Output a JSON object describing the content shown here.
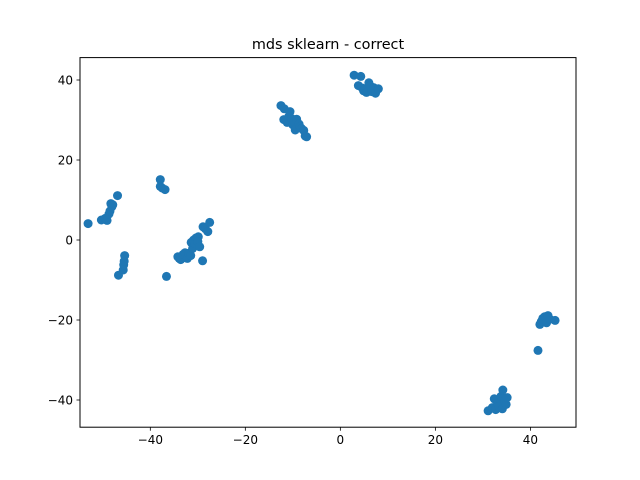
{
  "chart_data": {
    "type": "scatter",
    "title": "mds sklearn - correct",
    "xlabel": "",
    "ylabel": "",
    "xlim": [
      -54.8,
      49.6
    ],
    "ylim": [
      -46.8,
      45.6
    ],
    "xticks": [
      -40,
      -20,
      0,
      20,
      40
    ],
    "yticks": [
      -40,
      -20,
      0,
      20,
      40
    ],
    "grid": false,
    "legend": "none",
    "colors": {
      "points": "#1f77b4",
      "axes": "#000000",
      "background": "#ffffff"
    },
    "series": [
      {
        "points": [
          [
            -53.1,
            4.1
          ],
          [
            -50.3,
            5.0
          ],
          [
            -49.5,
            5.4
          ],
          [
            -49.1,
            4.9
          ],
          [
            -48.7,
            6.5
          ],
          [
            -48.5,
            7.2
          ],
          [
            -48.1,
            8.3
          ],
          [
            -48.3,
            9.1
          ],
          [
            -47.9,
            8.8
          ],
          [
            -46.9,
            11.1
          ],
          [
            -46.7,
            -8.8
          ],
          [
            -45.7,
            -7.5
          ],
          [
            -45.6,
            -6.2
          ],
          [
            -45.5,
            -5.3
          ],
          [
            -45.4,
            -3.9
          ],
          [
            -37.9,
            15.1
          ],
          [
            -37.9,
            13.4
          ],
          [
            -37.5,
            13.0
          ],
          [
            -36.9,
            12.6
          ],
          [
            -36.6,
            -9.1
          ],
          [
            -34.2,
            -4.2
          ],
          [
            -33.9,
            -4.6
          ],
          [
            -33.6,
            -4.9
          ],
          [
            -33.1,
            -3.6
          ],
          [
            -32.7,
            -3.2
          ],
          [
            -32.2,
            -4.6
          ],
          [
            -31.9,
            -3.3
          ],
          [
            -31.5,
            -3.9
          ],
          [
            -31.1,
            -2.1
          ],
          [
            -31.4,
            -0.6
          ],
          [
            -30.9,
            0.0
          ],
          [
            -30.6,
            -0.9
          ],
          [
            -30.4,
            0.5
          ],
          [
            -29.9,
            0.8
          ],
          [
            -30.0,
            -0.4
          ],
          [
            -29.6,
            -1.7
          ],
          [
            -29.0,
            -5.2
          ],
          [
            -28.9,
            3.3
          ],
          [
            -28.4,
            2.8
          ],
          [
            -27.9,
            2.1
          ],
          [
            -27.5,
            4.4
          ],
          [
            -12.5,
            33.6
          ],
          [
            -11.8,
            32.8
          ],
          [
            -11.9,
            30.1
          ],
          [
            -11.2,
            29.4
          ],
          [
            -10.8,
            31.0
          ],
          [
            -10.6,
            32.1
          ],
          [
            -10.3,
            30.4
          ],
          [
            -10.0,
            28.8
          ],
          [
            -9.7,
            29.6
          ],
          [
            -9.5,
            27.5
          ],
          [
            -9.2,
            30.2
          ],
          [
            -8.7,
            29.0
          ],
          [
            -8.5,
            28.3
          ],
          [
            -8.2,
            27.9
          ],
          [
            -7.7,
            27.4
          ],
          [
            -7.4,
            26.0
          ],
          [
            -7.1,
            25.8
          ],
          [
            2.9,
            41.2
          ],
          [
            3.8,
            38.6
          ],
          [
            4.3,
            40.9
          ],
          [
            4.6,
            38.0
          ],
          [
            4.9,
            37.3
          ],
          [
            5.2,
            37.6
          ],
          [
            5.5,
            36.9
          ],
          [
            5.8,
            37.2
          ],
          [
            6.0,
            39.3
          ],
          [
            6.3,
            38.5
          ],
          [
            6.6,
            37.1
          ],
          [
            7.0,
            38.1
          ],
          [
            7.4,
            36.7
          ],
          [
            8.0,
            37.8
          ],
          [
            41.6,
            -27.6
          ],
          [
            42.0,
            -21.1
          ],
          [
            42.3,
            -20.4
          ],
          [
            42.6,
            -19.6
          ],
          [
            43.0,
            -19.2
          ],
          [
            43.4,
            -20.7
          ],
          [
            43.7,
            -18.9
          ],
          [
            44.1,
            -19.8
          ],
          [
            45.2,
            -20.1
          ],
          [
            31.1,
            -42.7
          ],
          [
            32.0,
            -41.9
          ],
          [
            32.4,
            -39.7
          ],
          [
            32.7,
            -42.4
          ],
          [
            33.1,
            -40.8
          ],
          [
            33.4,
            -41.6
          ],
          [
            33.8,
            -39.1
          ],
          [
            34.1,
            -42.2
          ],
          [
            34.2,
            -37.5
          ],
          [
            34.6,
            -40.2
          ],
          [
            34.9,
            -41.1
          ],
          [
            35.1,
            -39.4
          ]
        ]
      }
    ]
  }
}
